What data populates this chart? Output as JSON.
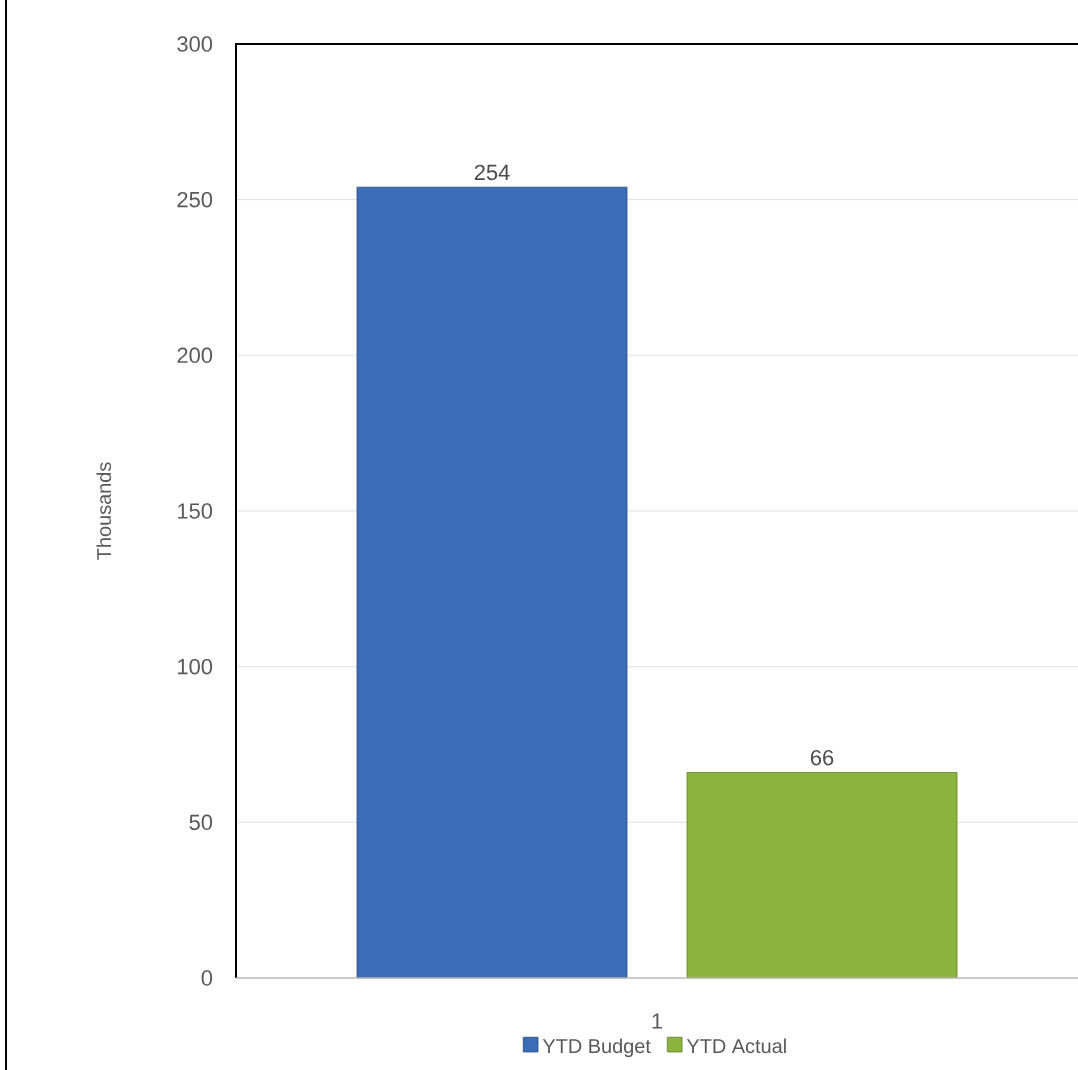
{
  "chart_data": {
    "type": "bar",
    "ylabel": "Thousands",
    "categories": [
      "1"
    ],
    "series": [
      {
        "name": "YTD Budget",
        "color": "#3a6db5",
        "values": [
          254
        ]
      },
      {
        "name": "YTD Actual",
        "color": "#8db33f",
        "values": [
          66
        ]
      }
    ],
    "ylim": [
      0,
      300
    ],
    "yticks": [
      0,
      50,
      100,
      150,
      200,
      250,
      300
    ],
    "grid": "y",
    "legend": "bottom",
    "data_labels": true
  }
}
